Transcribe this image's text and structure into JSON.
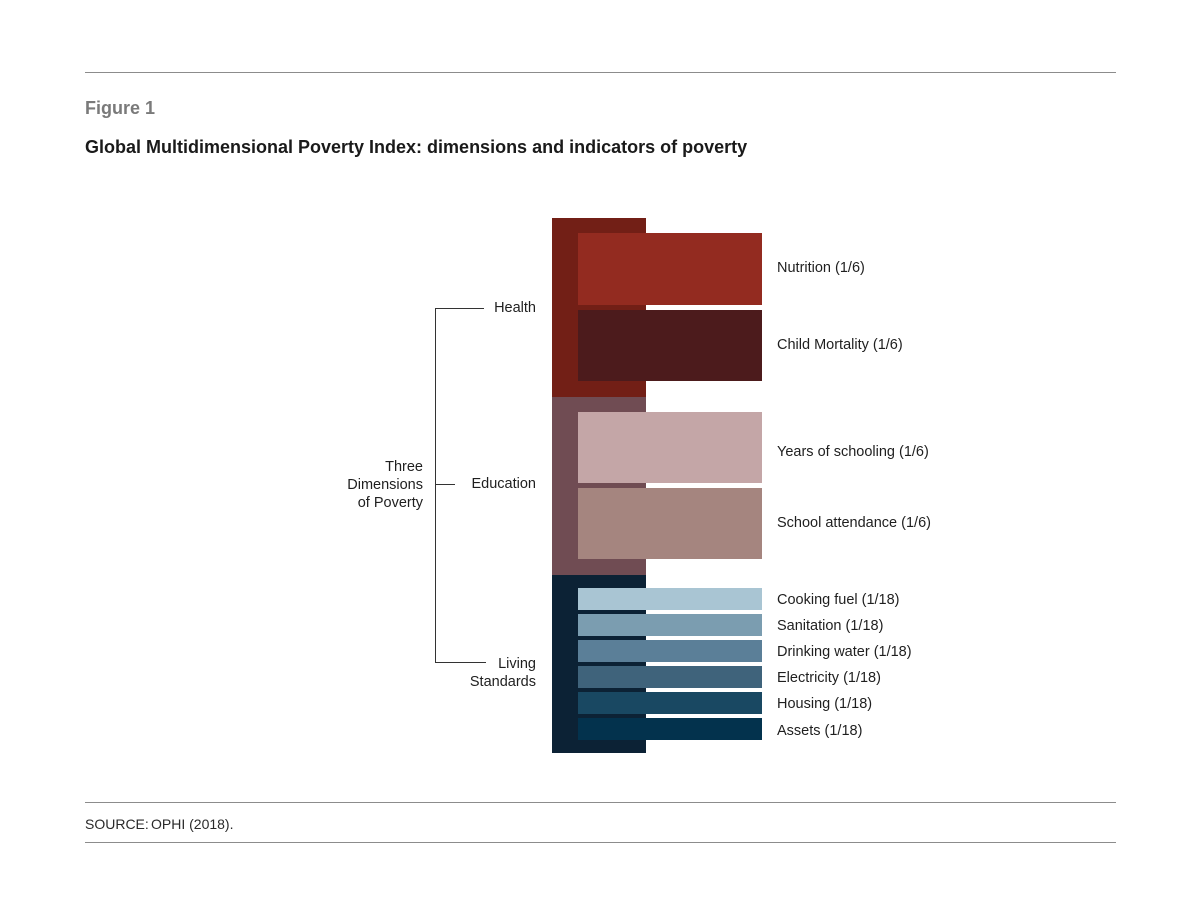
{
  "figure": {
    "label": "Figure 1",
    "title": "Global Multidimensional Poverty Index: dimensions and indicators of poverty"
  },
  "root": {
    "label": "Three\nDimensions\nof Poverty"
  },
  "dimensions": [
    {
      "name": "Health",
      "color": "#721f16",
      "indicators": [
        {
          "label": "Nutrition (1/6)",
          "color": "#932b20"
        },
        {
          "label": "Child Mortality (1/6)",
          "color": "#4c1b1c"
        }
      ]
    },
    {
      "name": "Education",
      "color": "#704c53",
      "indicators": [
        {
          "label": "Years of schooling (1/6)",
          "color": "#c4a6a7"
        },
        {
          "label": "School attendance (1/6)",
          "color": "#a5857f"
        }
      ]
    },
    {
      "name": "Living\nStandards",
      "color": "#0c2235",
      "indicators": [
        {
          "label": "Cooking fuel (1/18)",
          "color": "#a9c5d3"
        },
        {
          "label": "Sanitation (1/18)",
          "color": "#7b9db0"
        },
        {
          "label": "Drinking water (1/18)",
          "color": "#5b7f98"
        },
        {
          "label": "Electricity (1/18)",
          "color": "#3f637b"
        },
        {
          "label": "Housing (1/18)",
          "color": "#194862"
        },
        {
          "label": "Assets (1/18)",
          "color": "#03324d"
        }
      ]
    }
  ],
  "source": {
    "label": "SOURCE:",
    "text": "OPHI (2018)."
  }
}
